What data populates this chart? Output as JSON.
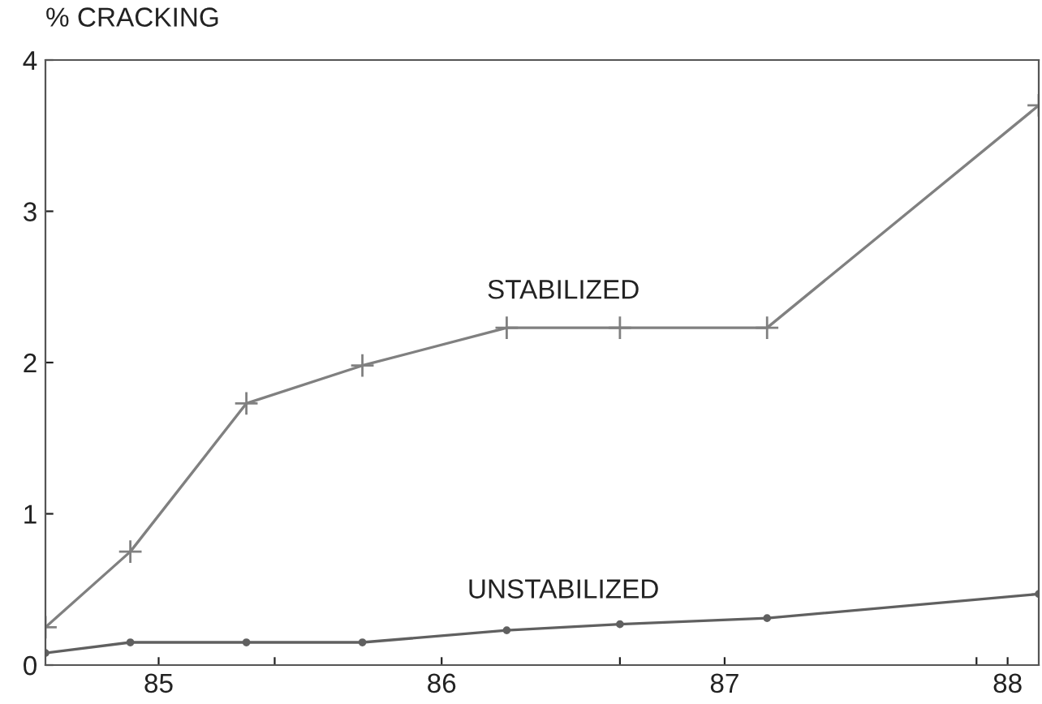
{
  "chart_data": {
    "type": "line",
    "ylabel": "% CRACKING",
    "xlim": [
      84.6,
      88.11
    ],
    "ylim": [
      0,
      4
    ],
    "yticks": [
      0,
      1,
      2,
      3,
      4
    ],
    "xticks": [
      85,
      86,
      87,
      88,
      {
        "value": 85.41,
        "label": null
      },
      {
        "value": 86.63,
        "label": null
      },
      {
        "value": 87.89,
        "label": null
      }
    ],
    "grid": false,
    "legend": false,
    "line_style": "solid",
    "series": [
      {
        "name": "STABILIZED",
        "color": "#808080",
        "marker": "cross",
        "x": [
          84.6,
          84.9,
          85.31,
          85.72,
          86.23,
          86.63,
          87.15,
          88.11
        ],
        "values": [
          0.25,
          0.75,
          1.73,
          1.98,
          2.23,
          2.23,
          2.23,
          3.7
        ]
      },
      {
        "name": "UNSTABILIZED",
        "color": "#606060",
        "marker": "circle",
        "x": [
          84.6,
          84.9,
          85.31,
          85.72,
          86.23,
          86.63,
          87.15,
          88.11
        ],
        "values": [
          0.08,
          0.15,
          0.15,
          0.15,
          0.23,
          0.27,
          0.31,
          0.47
        ]
      }
    ]
  }
}
